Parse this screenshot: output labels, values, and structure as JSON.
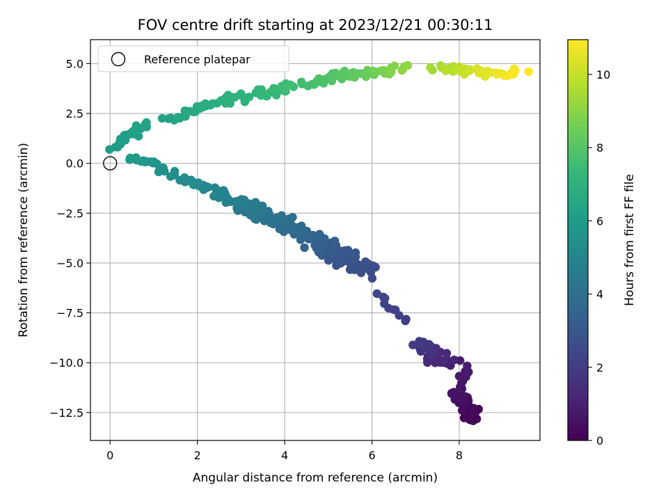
{
  "chart_data": {
    "type": "scatter",
    "title": "FOV centre drift starting at 2023/12/21 00:30:11",
    "xlabel": "Angular distance from reference (arcmin)",
    "ylabel": "Rotation from reference (arcmin)",
    "xlim": [
      -0.45,
      9.85
    ],
    "ylim": [
      -13.9,
      6.2
    ],
    "x_ticks": [
      0,
      2,
      4,
      6,
      8
    ],
    "x_tick_labels": [
      "0",
      "2",
      "4",
      "6",
      "8"
    ],
    "y_ticks": [
      5.0,
      2.5,
      0.0,
      -2.5,
      -5.0,
      -7.5,
      -10.0,
      -12.5
    ],
    "y_tick_labels": [
      "5.0",
      "2.5",
      "0.0",
      "−2.5",
      "−5.0",
      "−7.5",
      "−10.0",
      "−12.5"
    ],
    "grid": true,
    "legend": {
      "position": "upper-left",
      "entries": [
        "Reference platepar"
      ]
    },
    "reference_point": {
      "x": 0,
      "y": 0,
      "label": "Reference platepar"
    },
    "colorbar": {
      "label": "Hours from first FF file",
      "min": 0,
      "max": 10.95,
      "ticks": [
        0,
        2,
        4,
        6,
        8,
        10
      ],
      "tick_labels": [
        "0",
        "2",
        "4",
        "6",
        "8",
        "10"
      ],
      "colormap": "viridis",
      "colormap_stops": [
        "#440154",
        "#482878",
        "#3e4989",
        "#31688e",
        "#26828e",
        "#1f9e89",
        "#35b779",
        "#6ece58",
        "#b5de2b",
        "#fde725"
      ]
    },
    "series_segments": [
      {
        "x0": 8.3,
        "y0": -12.85,
        "x1": 8.0,
        "y1": -11.5,
        "n": 40,
        "t0": 0.0,
        "t1": 0.55,
        "jx": 0.3,
        "jy": 0.5
      },
      {
        "x0": 8.0,
        "y0": -11.5,
        "x1": 8.2,
        "y1": -10.2,
        "n": 10,
        "t0": 0.55,
        "t1": 0.85,
        "jx": 0.18,
        "jy": 0.3
      },
      {
        "x0": 7.8,
        "y0": -10.0,
        "x1": 7.0,
        "y1": -9.0,
        "n": 36,
        "t0": 0.9,
        "t1": 1.9,
        "jx": 0.35,
        "jy": 0.45
      },
      {
        "x0": 6.8,
        "y0": -7.9,
        "x1": 6.1,
        "y1": -6.6,
        "n": 10,
        "t0": 2.0,
        "t1": 2.4,
        "jx": 0.15,
        "jy": 0.22
      },
      {
        "x0": 5.9,
        "y0": -5.5,
        "x1": 4.5,
        "y1": -3.6,
        "n": 95,
        "t0": 2.5,
        "t1": 3.55,
        "jx": 0.42,
        "jy": 0.6
      },
      {
        "x0": 4.5,
        "y0": -3.6,
        "x1": 3.0,
        "y1": -2.0,
        "n": 95,
        "t0": 3.55,
        "t1": 4.6,
        "jx": 0.45,
        "jy": 0.42
      },
      {
        "x0": 3.0,
        "y0": -2.0,
        "x1": 1.8,
        "y1": -0.8,
        "n": 50,
        "t0": 4.6,
        "t1": 5.3,
        "jx": 0.3,
        "jy": 0.32
      },
      {
        "x0": 1.6,
        "y0": -0.7,
        "x1": 1.0,
        "y1": 0.0,
        "n": 10,
        "t0": 5.3,
        "t1": 5.7,
        "jx": 0.2,
        "jy": 0.25
      },
      {
        "x0": 0.95,
        "y0": 0.0,
        "x1": 0.4,
        "y1": 0.3,
        "n": 14,
        "t0": 5.7,
        "t1": 5.95,
        "jx": 0.22,
        "jy": 0.2
      },
      {
        "x0": 0.1,
        "y0": 0.8,
        "x1": 0.8,
        "y1": 2.0,
        "n": 22,
        "t0": 5.95,
        "t1": 6.35,
        "jx": 0.18,
        "jy": 0.25
      },
      {
        "x0": 1.2,
        "y0": 2.2,
        "x1": 3.0,
        "y1": 3.3,
        "n": 30,
        "t0": 6.35,
        "t1": 7.0,
        "jx": 0.25,
        "jy": 0.3
      },
      {
        "x0": 3.0,
        "y0": 3.3,
        "x1": 5.5,
        "y1": 4.5,
        "n": 45,
        "t0": 7.0,
        "t1": 8.1,
        "jx": 0.3,
        "jy": 0.35
      },
      {
        "x0": 5.5,
        "y0": 4.5,
        "x1": 6.8,
        "y1": 4.7,
        "n": 25,
        "t0": 8.1,
        "t1": 9.1,
        "jx": 0.2,
        "jy": 0.35
      },
      {
        "x0": 7.4,
        "y0": 4.8,
        "x1": 9.4,
        "y1": 4.5,
        "n": 40,
        "t0": 9.4,
        "t1": 10.95,
        "jx": 0.3,
        "jy": 0.3
      }
    ]
  }
}
